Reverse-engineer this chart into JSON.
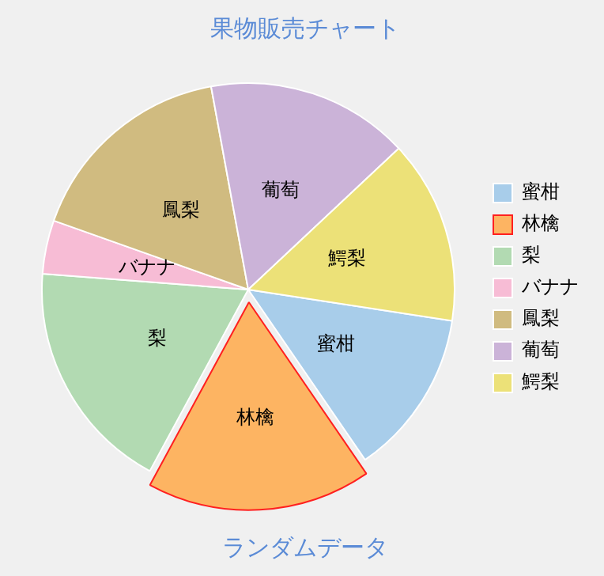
{
  "chart_data": {
    "type": "pie",
    "title": "果物販売チャート",
    "subtitle": "ランダムデータ",
    "categories": [
      "蜜柑",
      "林檎",
      "梨",
      "バナナ",
      "鳳梨",
      "葡萄",
      "鰐梨"
    ],
    "values": [
      13,
      17.5,
      18.3,
      4.2,
      16.7,
      15.9,
      14.4
    ],
    "colors": [
      "#a8cdea",
      "#fdb462",
      "#b2dab2",
      "#f7bcd5",
      "#d0bb80",
      "#cbb3d8",
      "#ece178"
    ],
    "legend": "right"
  }
}
